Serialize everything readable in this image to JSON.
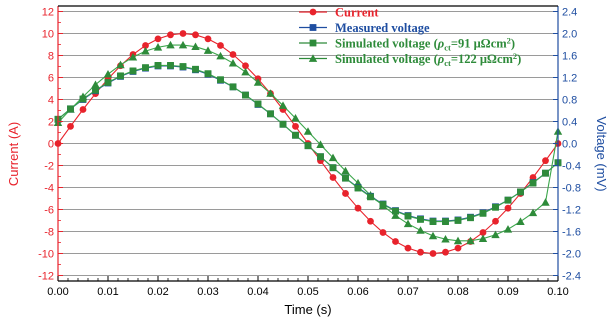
{
  "colors": {
    "current": "#e8232c",
    "measured": "#1f4ea1",
    "sim91": "#2e8b3a",
    "sim122": "#2e8b3a",
    "sim91_line": "#3aa64a",
    "sim122_line": "#3aa64a",
    "grid": "#9a9a9a",
    "axis": "#000000"
  },
  "chart_data": {
    "type": "line",
    "xlabel": "Time (s)",
    "ylabel_left": "Current (A)",
    "ylabel_right": "Voltage (mV)",
    "xlim": [
      0.0,
      0.1
    ],
    "ylim_left": [
      -12.5,
      12.5
    ],
    "ylim_right": [
      -2.5,
      2.5
    ],
    "xticks": [
      "0.00",
      "0.01",
      "0.02",
      "0.03",
      "0.04",
      "0.05",
      "0.06",
      "0.07",
      "0.08",
      "0.09",
      "0.10"
    ],
    "yticks_left": [
      "12",
      "10",
      "8",
      "6",
      "4",
      "2",
      "0",
      "-2",
      "-4",
      "-6",
      "-8",
      "-10",
      "-12"
    ],
    "yticks_right": [
      "2.4",
      "2.0",
      "1.6",
      "1.2",
      "0.8",
      "0.4",
      "0.0",
      "-0.4",
      "-0.8",
      "-1.2",
      "-1.6",
      "-2.0",
      "-2.4"
    ],
    "grid": "horizontal",
    "legend_position": "upper-right-center",
    "series": [
      {
        "name": "Current",
        "axis": "left",
        "marker": "circle",
        "amplitude": 10,
        "x": [
          0.0,
          0.0025,
          0.005,
          0.0075,
          0.01,
          0.0125,
          0.015,
          0.0175,
          0.02,
          0.0225,
          0.025,
          0.0275,
          0.03,
          0.0325,
          0.035,
          0.0375,
          0.04,
          0.0425,
          0.045,
          0.0475,
          0.05,
          0.0525,
          0.055,
          0.0575,
          0.06,
          0.0625,
          0.065,
          0.0675,
          0.07,
          0.0725,
          0.075,
          0.0775,
          0.08,
          0.0825,
          0.085,
          0.0875,
          0.09,
          0.0925,
          0.095,
          0.0975,
          0.1
        ],
        "y": [
          0.0,
          1.56,
          3.09,
          4.54,
          5.88,
          7.07,
          8.09,
          8.91,
          9.51,
          9.88,
          10.0,
          9.88,
          9.51,
          8.91,
          8.09,
          7.07,
          5.88,
          4.54,
          3.09,
          1.56,
          0.0,
          -1.56,
          -3.09,
          -4.54,
          -5.88,
          -7.07,
          -8.09,
          -8.91,
          -9.51,
          -9.88,
          -10.0,
          -9.88,
          -9.51,
          -8.91,
          -8.09,
          -7.07,
          -5.88,
          -4.54,
          -3.09,
          -1.56,
          0.0
        ]
      },
      {
        "name": "Measured voltage",
        "axis": "right",
        "marker": "square",
        "x": [
          0.0,
          0.0025,
          0.005,
          0.0075,
          0.01,
          0.0125,
          0.015,
          0.0175,
          0.02,
          0.0225,
          0.025,
          0.0275,
          0.03,
          0.0325,
          0.035,
          0.0375,
          0.04,
          0.0425,
          0.045,
          0.0475,
          0.05,
          0.0525,
          0.055,
          0.0575,
          0.06,
          0.0625,
          0.065,
          0.0675,
          0.07,
          0.0725,
          0.075,
          0.0775,
          0.08,
          0.0825,
          0.085,
          0.0875,
          0.09,
          0.0925,
          0.095,
          0.0975,
          0.1
        ],
        "y": [
          0.44,
          0.63,
          0.8,
          0.96,
          1.1,
          1.22,
          1.31,
          1.37,
          1.41,
          1.41,
          1.39,
          1.34,
          1.26,
          1.15,
          1.03,
          0.88,
          0.71,
          0.54,
          0.35,
          0.15,
          -0.04,
          -0.24,
          -0.44,
          -0.63,
          -0.8,
          -0.96,
          -1.1,
          -1.22,
          -1.31,
          -1.37,
          -1.41,
          -1.41,
          -1.39,
          -1.34,
          -1.26,
          -1.15,
          -1.03,
          -0.88,
          -0.71,
          -0.54,
          -0.35
        ]
      },
      {
        "name": "Simulated voltage (ρct=91 μΩcm²)",
        "axis": "right",
        "marker": "square",
        "x": [
          0.0,
          0.0025,
          0.005,
          0.0075,
          0.01,
          0.0125,
          0.015,
          0.0175,
          0.02,
          0.0225,
          0.025,
          0.0275,
          0.03,
          0.0325,
          0.035,
          0.0375,
          0.04,
          0.0425,
          0.045,
          0.0475,
          0.05,
          0.0525,
          0.055,
          0.0575,
          0.06,
          0.0625,
          0.065,
          0.0675,
          0.07,
          0.0725,
          0.075,
          0.0775,
          0.08,
          0.0825,
          0.085,
          0.0875,
          0.09,
          0.0925,
          0.095,
          0.0975,
          0.1
        ],
        "y": [
          0.44,
          0.63,
          0.81,
          0.97,
          1.11,
          1.23,
          1.32,
          1.38,
          1.42,
          1.42,
          1.4,
          1.35,
          1.27,
          1.16,
          1.03,
          0.88,
          0.72,
          0.54,
          0.35,
          0.15,
          -0.04,
          -0.24,
          -0.44,
          -0.63,
          -0.81,
          -0.97,
          -1.11,
          -1.23,
          -1.32,
          -1.38,
          -1.42,
          -1.42,
          -1.4,
          -1.35,
          -1.27,
          -1.16,
          -1.03,
          -0.88,
          -0.72,
          -0.54,
          -0.35
        ]
      },
      {
        "name": "Simulated voltage (ρct=122 μΩcm²)",
        "axis": "right",
        "marker": "triangle",
        "x": [
          0.0,
          0.0025,
          0.005,
          0.0075,
          0.01,
          0.0125,
          0.015,
          0.0175,
          0.02,
          0.0225,
          0.025,
          0.0275,
          0.03,
          0.0325,
          0.035,
          0.0375,
          0.04,
          0.0425,
          0.045,
          0.0475,
          0.05,
          0.0525,
          0.055,
          0.0575,
          0.06,
          0.0625,
          0.065,
          0.0675,
          0.07,
          0.0725,
          0.075,
          0.0775,
          0.08,
          0.0825,
          0.085,
          0.0875,
          0.09,
          0.0925,
          0.095,
          0.0975,
          0.1
        ],
        "y": [
          0.38,
          0.62,
          0.85,
          1.07,
          1.26,
          1.43,
          1.57,
          1.68,
          1.75,
          1.79,
          1.79,
          1.76,
          1.69,
          1.59,
          1.46,
          1.3,
          1.11,
          0.91,
          0.69,
          0.46,
          0.22,
          -0.02,
          -0.26,
          -0.5,
          -0.72,
          -0.94,
          -1.13,
          -1.31,
          -1.46,
          -1.58,
          -1.68,
          -1.74,
          -1.77,
          -1.77,
          -1.73,
          -1.66,
          -1.56,
          -1.42,
          -1.26,
          -1.07,
          0.22
        ]
      }
    ]
  },
  "legend": {
    "items": [
      {
        "text": "Current",
        "key": "current",
        "marker": "circle"
      },
      {
        "text": "Measured voltage",
        "key": "measured",
        "marker": "square"
      },
      {
        "text_pre": "Simulated voltage (",
        "rho": "ρ",
        "sub": "ct",
        "text_post": "=91 μΩcm",
        "sup": "2",
        "text_end": ")",
        "key": "sim91",
        "marker": "square"
      },
      {
        "text_pre": "Simulated voltage (",
        "rho": "ρ",
        "sub": "ct",
        "text_post": "=122 μΩcm",
        "sup": "2",
        "text_end": ")",
        "key": "sim122",
        "marker": "triangle"
      }
    ]
  }
}
